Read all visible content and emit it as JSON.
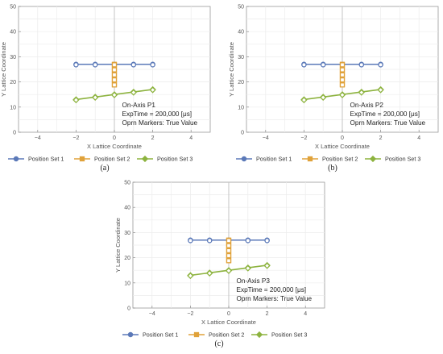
{
  "chart_data": [
    {
      "type": "line",
      "caption": "(a)",
      "xlabel": "X Lattice Coordinate",
      "ylabel": "Y Lattice Coordinate",
      "xlim": [
        -5,
        5
      ],
      "ylim": [
        0,
        50
      ],
      "xticks": [
        -4,
        -2,
        0,
        2,
        4
      ],
      "yticks": [
        0,
        10,
        20,
        30,
        40,
        50
      ],
      "grid": true,
      "legend_position": "bottom",
      "annotation": [
        "On-Axis P1",
        "ExpTime = 200,000 [μs]",
        "Oprn Markers: True Value"
      ],
      "series": [
        {
          "name": "Position Set 1",
          "color": "#5b79b8",
          "marker": "circle",
          "points": [
            [
              -2,
              27
            ],
            [
              -1,
              27
            ],
            [
              0,
              27
            ],
            [
              1,
              27
            ],
            [
              2,
              27
            ]
          ]
        },
        {
          "name": "Position Set 2",
          "color": "#e0a23a",
          "marker": "square",
          "points": [
            [
              0,
              19
            ],
            [
              0,
              21
            ],
            [
              0,
              23
            ],
            [
              0,
              25
            ],
            [
              0,
              27
            ]
          ]
        },
        {
          "name": "Position Set 3",
          "color": "#8db33f",
          "marker": "diamond",
          "points": [
            [
              -2,
              13
            ],
            [
              -1,
              14
            ],
            [
              0,
              15
            ],
            [
              1,
              16
            ],
            [
              2,
              17
            ]
          ]
        }
      ]
    },
    {
      "type": "line",
      "caption": "(b)",
      "xlabel": "X Lattice Coordinate",
      "ylabel": "Y Lattice Coordinate",
      "xlim": [
        -5,
        5
      ],
      "ylim": [
        0,
        50
      ],
      "xticks": [
        -4,
        -2,
        0,
        2,
        4
      ],
      "yticks": [
        0,
        10,
        20,
        30,
        40,
        50
      ],
      "grid": true,
      "legend_position": "bottom",
      "annotation": [
        "On-Axis P2",
        "ExpTime = 200,000 [μs]",
        "Oprn Markers: True Value"
      ],
      "series": [
        {
          "name": "Position Set 1",
          "color": "#5b79b8",
          "marker": "circle",
          "points": [
            [
              -2,
              27
            ],
            [
              -1,
              27
            ],
            [
              0,
              27
            ],
            [
              1,
              27
            ],
            [
              2,
              27
            ]
          ]
        },
        {
          "name": "Position Set 2",
          "color": "#e0a23a",
          "marker": "square",
          "points": [
            [
              0,
              19
            ],
            [
              0,
              21
            ],
            [
              0,
              23
            ],
            [
              0,
              25
            ],
            [
              0,
              27
            ]
          ]
        },
        {
          "name": "Position Set 3",
          "color": "#8db33f",
          "marker": "diamond",
          "points": [
            [
              -2,
              13
            ],
            [
              -1,
              14
            ],
            [
              0,
              15
            ],
            [
              1,
              16
            ],
            [
              2,
              17
            ]
          ]
        }
      ]
    },
    {
      "type": "line",
      "caption": "(c)",
      "xlabel": "X Lattice Coordinate",
      "ylabel": "Y Lattice Coordinate",
      "xlim": [
        -5,
        5
      ],
      "ylim": [
        0,
        50
      ],
      "xticks": [
        -4,
        -2,
        0,
        2,
        4
      ],
      "yticks": [
        0,
        10,
        20,
        30,
        40,
        50
      ],
      "grid": true,
      "legend_position": "bottom",
      "annotation": [
        "On-Axis P3",
        "ExpTime = 200,000 [μs]",
        "Oprn Markers: True Value"
      ],
      "series": [
        {
          "name": "Position Set 1",
          "color": "#5b79b8",
          "marker": "circle",
          "points": [
            [
              -2,
              27
            ],
            [
              -1,
              27
            ],
            [
              0,
              27
            ],
            [
              1,
              27
            ],
            [
              2,
              27
            ]
          ]
        },
        {
          "name": "Position Set 2",
          "color": "#e0a23a",
          "marker": "square",
          "points": [
            [
              0,
              19
            ],
            [
              0,
              21
            ],
            [
              0,
              23
            ],
            [
              0,
              25
            ],
            [
              0,
              27
            ]
          ]
        },
        {
          "name": "Position Set 3",
          "color": "#8db33f",
          "marker": "diamond",
          "points": [
            [
              -2,
              13
            ],
            [
              -1,
              14
            ],
            [
              0,
              15
            ],
            [
              1,
              16
            ],
            [
              2,
              17
            ]
          ]
        }
      ]
    }
  ]
}
